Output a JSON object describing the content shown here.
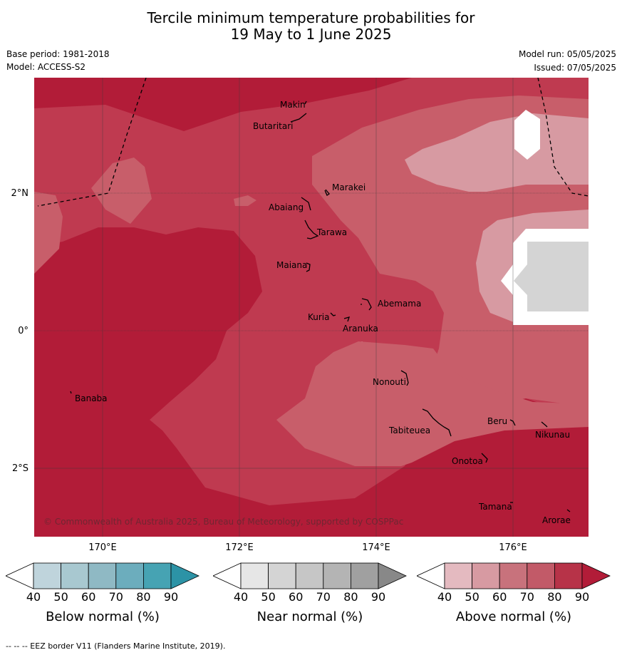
{
  "title": {
    "line1": "Tercile minimum temperature probabilities for",
    "line2": "19 May to 1 June 2025"
  },
  "meta": {
    "base_period": "Base period: 1981-2018",
    "model": "Model: ACCESS-S2",
    "model_run": "Model run: 05/05/2025",
    "issued": "Issued: 07/05/2025"
  },
  "map": {
    "copyright": "© Commonwealth of Australia 2025, Bureau of Meteorology, supported by COSPPac",
    "colors": {
      "above_90": "#b21c38",
      "above_80": "#bf3a50",
      "above_70": "#c85e6a",
      "above_60": "#d79aa2",
      "above_50": "#e4bac0",
      "white": "#ffffff",
      "near_50": "#d4d4d4"
    },
    "x_ticks": [
      "170°E",
      "172°E",
      "174°E",
      "176°E"
    ],
    "y_ticks": [
      "2°N",
      "0°",
      "2°S"
    ],
    "islands": [
      {
        "name": "Makin"
      },
      {
        "name": "Butaritari"
      },
      {
        "name": "Marakei"
      },
      {
        "name": "Abaiang"
      },
      {
        "name": "Tarawa"
      },
      {
        "name": "Maiana"
      },
      {
        "name": "Abemama"
      },
      {
        "name": "Kuria"
      },
      {
        "name": "Aranuka"
      },
      {
        "name": "Nonouti"
      },
      {
        "name": "Banaba"
      },
      {
        "name": "Beru"
      },
      {
        "name": "Tabiteuea"
      },
      {
        "name": "Nikunau"
      },
      {
        "name": "Onotoa"
      },
      {
        "name": "Tamana"
      },
      {
        "name": "Arorae"
      }
    ]
  },
  "colorbars": [
    {
      "title": "Below normal (%)",
      "ticks": [
        "40",
        "50",
        "60",
        "70",
        "80",
        "90"
      ],
      "colors": [
        "#bfd4dc",
        "#a8c8d0",
        "#8fb9c4",
        "#6cadbd",
        "#46a3b3",
        "#2c93a6"
      ]
    },
    {
      "title": "Near normal (%)",
      "ticks": [
        "40",
        "50",
        "60",
        "70",
        "80",
        "90"
      ],
      "colors": [
        "#e6e6e6",
        "#d4d4d4",
        "#c6c6c6",
        "#b4b4b4",
        "#a0a0a0",
        "#888888"
      ]
    },
    {
      "title": "Above normal (%)",
      "ticks": [
        "40",
        "50",
        "60",
        "70",
        "80",
        "90"
      ],
      "colors": [
        "#e4bac0",
        "#d79aa2",
        "#c8727c",
        "#c25a68",
        "#b73348",
        "#b21c38"
      ]
    }
  ],
  "footer": "--  --  -- EEZ border V11 (Flanders Marine Institute, 2019)."
}
